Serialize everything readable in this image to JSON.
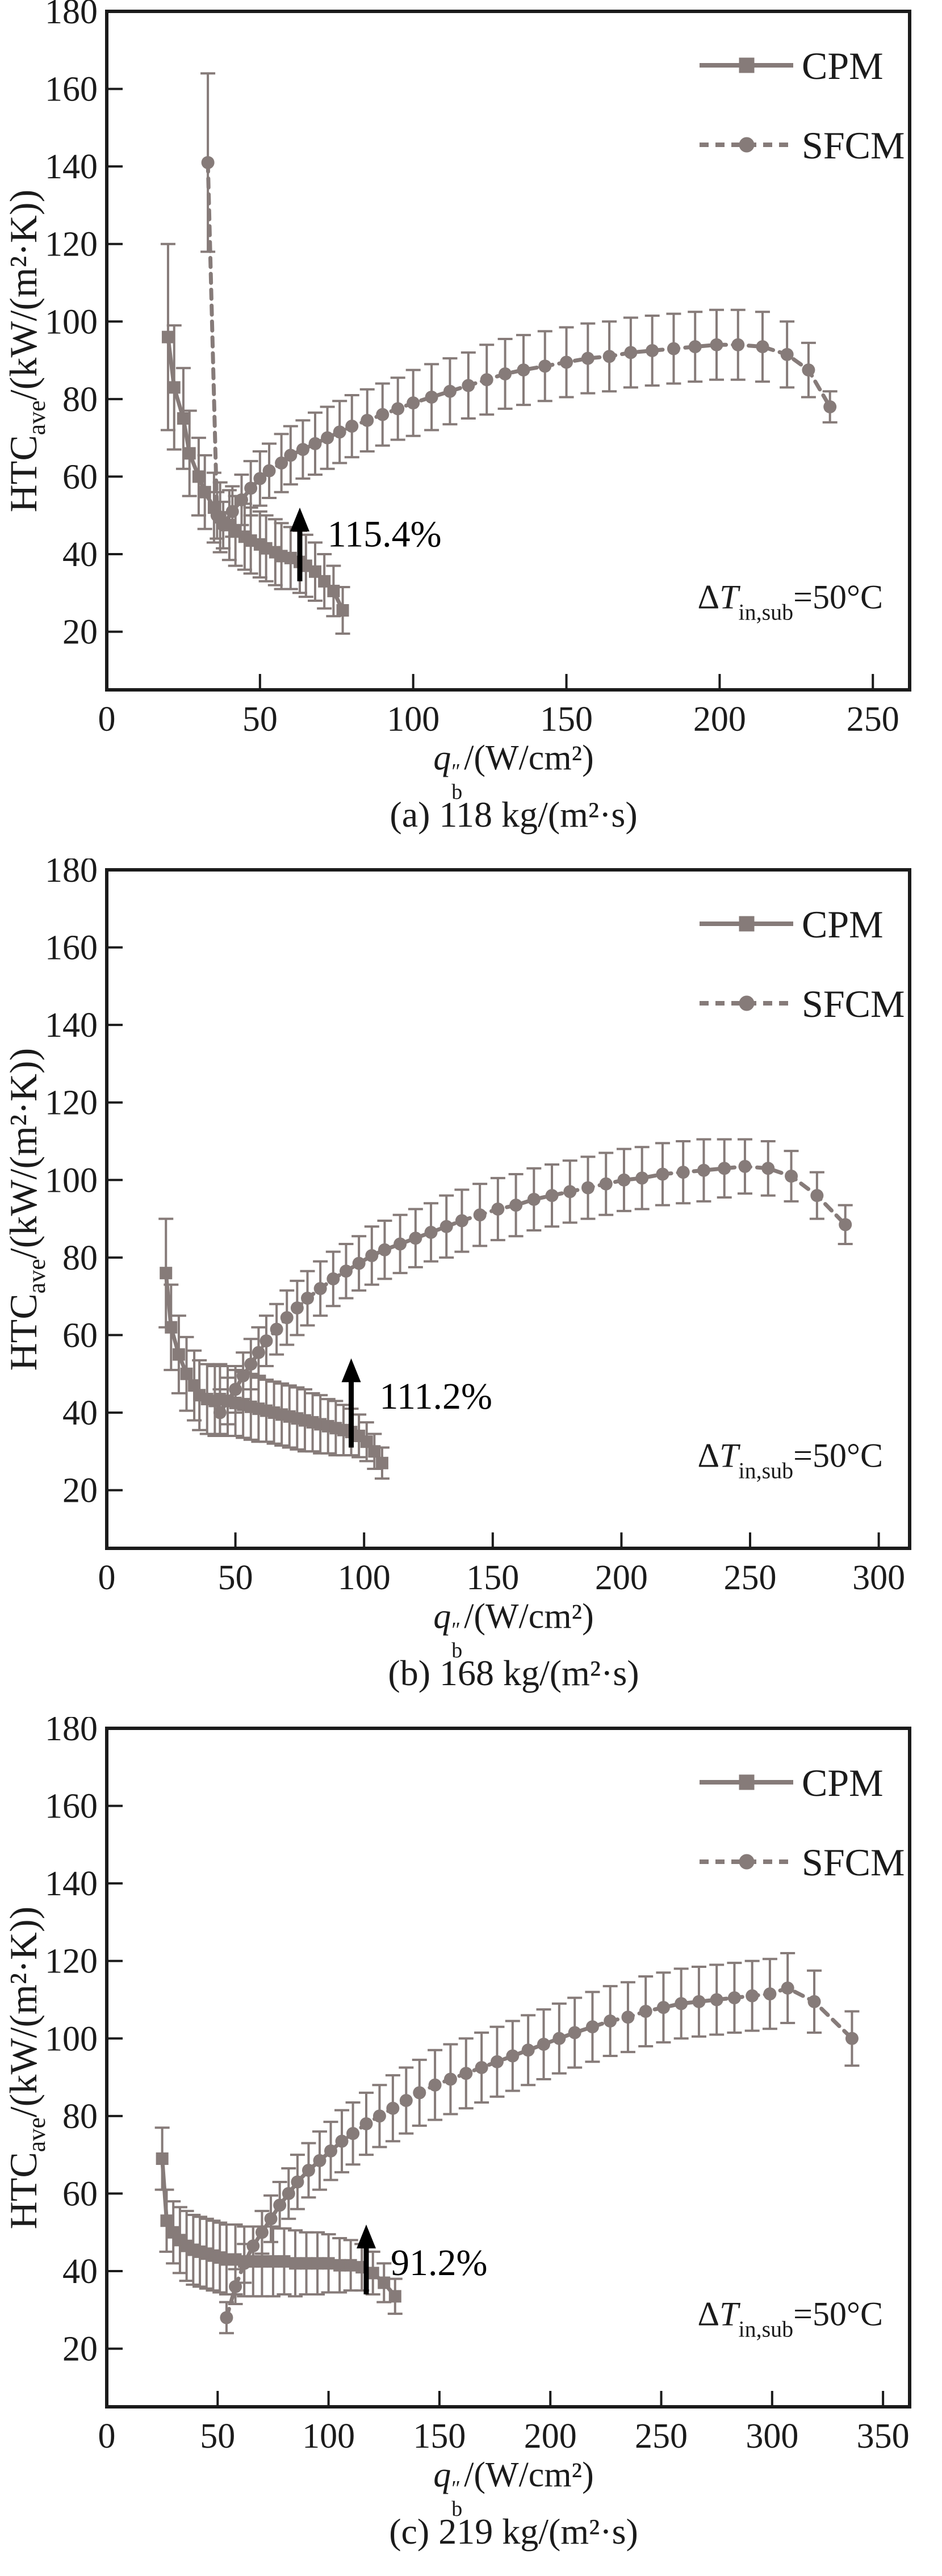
{
  "figure": {
    "series_color": "#867b79",
    "axis_color": "#1b1b1b",
    "annotation_color": "#000000",
    "legend": [
      {
        "label": "CPM",
        "marker": "square"
      },
      {
        "label": "SFCM",
        "marker": "circle"
      }
    ],
    "ylabel": {
      "prefix": "HTC",
      "sub": "ave",
      "rest": "/(kW/(m²·K))"
    },
    "xlabel": {
      "q": "q",
      "sup": "″",
      "sub": "b",
      "rest": "/(W/cm²)"
    },
    "delta_label": {
      "prefix": "Δ",
      "tvar": "T",
      "sub": "in,sub",
      "rest": "=50°C"
    }
  },
  "chart_data": [
    {
      "type": "line",
      "caption": "(a) 118 kg/(m²·s)",
      "xlim": [
        0,
        262
      ],
      "ylim": [
        5,
        180
      ],
      "xticks": [
        0,
        50,
        100,
        150,
        200,
        250
      ],
      "yticks": [
        20,
        40,
        60,
        80,
        100,
        120,
        140,
        160,
        180
      ],
      "grid": false,
      "legend_position": "top-right",
      "annotation": {
        "text": "115.4%",
        "arrow_x": 63,
        "arrow_from": 33,
        "arrow_to": 52,
        "text_x": 72,
        "text_y": 42
      },
      "condition_value": 26,
      "series": [
        {
          "name": "CPM",
          "marker": "square",
          "x": [
            20,
            22,
            25,
            27,
            30,
            32,
            35,
            37,
            40,
            42,
            45,
            47,
            50,
            52,
            55,
            57,
            60,
            63,
            65,
            68,
            71,
            74,
            77
          ],
          "y": [
            96,
            83,
            75,
            66,
            60,
            56,
            52,
            49.5,
            47.5,
            46,
            44.5,
            43.5,
            42.5,
            41.5,
            40.5,
            39.5,
            39,
            38,
            37,
            35.5,
            33,
            30.5,
            25.5
          ],
          "err": [
            24,
            16,
            13,
            11,
            10,
            9.5,
            9,
            9,
            9,
            9,
            8.5,
            8.5,
            8.5,
            8.5,
            8.5,
            8.5,
            8,
            8,
            8,
            7.5,
            7,
            6.5,
            6
          ]
        },
        {
          "name": "SFCM",
          "marker": "circle",
          "x": [
            33,
            36,
            38,
            41,
            44,
            47,
            50,
            53,
            57,
            60,
            64,
            68,
            72,
            76,
            80,
            85,
            90,
            95,
            100,
            106,
            112,
            118,
            124,
            130,
            136,
            143,
            150,
            157,
            164,
            171,
            178,
            185,
            192,
            199,
            206,
            214,
            222,
            229,
            236
          ],
          "y": [
            141,
            50,
            47.5,
            51,
            54,
            57,
            59.5,
            61.5,
            63.5,
            65.5,
            67,
            68.5,
            70,
            71.5,
            73,
            74.5,
            76,
            77.5,
            79,
            80.5,
            82,
            83.5,
            85,
            86.5,
            87.5,
            88.5,
            89.5,
            90.5,
            91,
            92,
            92.5,
            93,
            93.5,
            94,
            94,
            93.5,
            91.5,
            87.5,
            78
          ],
          "err": [
            23,
            6,
            6,
            6.5,
            6.5,
            7,
            7,
            7,
            7.5,
            7.5,
            7.5,
            8,
            8,
            8,
            8,
            8,
            8,
            8,
            8.5,
            8.5,
            8.5,
            8.5,
            9,
            9,
            9,
            9,
            9,
            9,
            9,
            9,
            9,
            9,
            9,
            9,
            9,
            9,
            8.5,
            7,
            4
          ]
        }
      ]
    },
    {
      "type": "line",
      "caption": "(b) 168 kg/(m²·s)",
      "xlim": [
        0,
        312
      ],
      "ylim": [
        5,
        180
      ],
      "xticks": [
        0,
        50,
        100,
        150,
        200,
        250,
        300
      ],
      "yticks": [
        20,
        40,
        60,
        80,
        100,
        120,
        140,
        160,
        180
      ],
      "grid": false,
      "legend_position": "top-right",
      "annotation": {
        "text": "111.2%",
        "arrow_x": 95,
        "arrow_from": 31,
        "arrow_to": 54,
        "text_x": 106,
        "text_y": 41
      },
      "condition_value": 26,
      "series": [
        {
          "name": "CPM",
          "marker": "square",
          "x": [
            23,
            25,
            28,
            31,
            34,
            36,
            39,
            42,
            44,
            47,
            50,
            53,
            56,
            59,
            62,
            65,
            68,
            71,
            74,
            77,
            80,
            83,
            86,
            89,
            92,
            95,
            98,
            101,
            104,
            107
          ],
          "y": [
            76,
            62,
            55,
            50,
            47,
            44.5,
            43.5,
            43,
            43.5,
            43,
            42.5,
            42,
            41.5,
            41,
            40.5,
            40,
            39.5,
            39,
            38.5,
            38,
            37.5,
            37,
            36.5,
            36,
            35.5,
            35,
            34,
            32.5,
            30,
            27
          ],
          "err": [
            14,
            11,
            10,
            9.5,
            9,
            9,
            9,
            9,
            9,
            9,
            8.5,
            8.5,
            8.5,
            8.5,
            8,
            8,
            8,
            8,
            8,
            8,
            7.5,
            7.5,
            7,
            7,
            6.5,
            6,
            5.5,
            5,
            4.5,
            4
          ]
        },
        {
          "name": "SFCM",
          "marker": "circle",
          "x": [
            44,
            47,
            50,
            53,
            56,
            59,
            62,
            66,
            70,
            74,
            78,
            83,
            88,
            93,
            98,
            103,
            108,
            114,
            120,
            126,
            132,
            138,
            145,
            152,
            159,
            166,
            173,
            180,
            187,
            194,
            201,
            208,
            216,
            224,
            232,
            240,
            248,
            257,
            266,
            276,
            287
          ],
          "y": [
            40,
            43,
            46,
            49.5,
            52.5,
            55.5,
            58.5,
            61.5,
            64.5,
            67,
            69.5,
            72,
            74.5,
            76.5,
            78.5,
            80.5,
            82,
            83.5,
            85,
            86.5,
            88,
            89.5,
            91,
            92.5,
            93.5,
            95,
            96,
            97,
            98,
            99,
            100,
            100.5,
            101.5,
            102,
            102.5,
            103,
            103.5,
            103,
            101,
            96,
            88.5
          ],
          "err": [
            6,
            6,
            6,
            6,
            6.5,
            6.5,
            6.5,
            6.5,
            7,
            7,
            7,
            7,
            7,
            7,
            7,
            7.5,
            7.5,
            7.5,
            7.5,
            7.5,
            8,
            8,
            8,
            8,
            8,
            8,
            8,
            8,
            8,
            8,
            8,
            8,
            8,
            8,
            8,
            7.5,
            7,
            7,
            6.5,
            6,
            5
          ]
        }
      ]
    },
    {
      "type": "line",
      "caption": "(c) 219 kg/(m²·s)",
      "xlim": [
        0,
        362
      ],
      "ylim": [
        5,
        180
      ],
      "xticks": [
        0,
        50,
        100,
        150,
        200,
        250,
        300,
        350
      ],
      "yticks": [
        20,
        40,
        60,
        80,
        100,
        120,
        140,
        160,
        180
      ],
      "grid": false,
      "legend_position": "top-right",
      "annotation": {
        "text": "91.2%",
        "arrow_x": 117,
        "arrow_from": 34,
        "arrow_to": 52,
        "text_x": 128,
        "text_y": 39
      },
      "condition_value": 26,
      "series": [
        {
          "name": "CPM",
          "marker": "square",
          "x": [
            25,
            27,
            30,
            33,
            36,
            39,
            42,
            45,
            48,
            51,
            54,
            58,
            62,
            66,
            70,
            75,
            80,
            85,
            90,
            95,
            100,
            105,
            110,
            115,
            120,
            125,
            130
          ],
          "y": [
            69,
            53,
            50,
            48,
            46.5,
            45.5,
            45,
            44.5,
            44,
            43.5,
            43,
            43,
            42.5,
            42.5,
            42.5,
            42.5,
            42.5,
            42,
            42,
            42,
            42,
            41.5,
            41.5,
            41,
            39.5,
            37,
            33.5
          ],
          "err": [
            8,
            8,
            8,
            8.5,
            9,
            9,
            9,
            9,
            9,
            9,
            9,
            9,
            9,
            9,
            9,
            9,
            8.5,
            8.5,
            8,
            8,
            7.5,
            7,
            6.5,
            6,
            5.5,
            5,
            4.5
          ]
        },
        {
          "name": "SFCM",
          "marker": "circle",
          "x": [
            54,
            58,
            62,
            66,
            70,
            74,
            78,
            82,
            86,
            91,
            96,
            101,
            106,
            111,
            117,
            123,
            129,
            135,
            141,
            148,
            155,
            162,
            169,
            176,
            183,
            190,
            197,
            204,
            211,
            219,
            227,
            235,
            243,
            251,
            259,
            267,
            275,
            283,
            291,
            299,
            307,
            319,
            336
          ],
          "y": [
            28,
            36,
            42,
            46.5,
            50,
            53.5,
            57,
            60,
            63,
            66,
            68.5,
            71,
            73.5,
            75.5,
            78,
            80,
            82,
            84,
            86,
            88,
            89.5,
            91,
            92.5,
            94,
            95.5,
            97,
            98.5,
            100,
            101.5,
            103,
            104.5,
            105.5,
            107,
            108,
            109,
            109.5,
            110,
            110.5,
            111,
            111.5,
            113,
            109.5,
            100
          ],
          "err": [
            4,
            4.5,
            5,
            5,
            5.5,
            6,
            6,
            6.5,
            7,
            7,
            7.5,
            7.5,
            8,
            8,
            8,
            8,
            8.5,
            8.5,
            8.5,
            9,
            9,
            9,
            9,
            9,
            9,
            9,
            9,
            9,
            9,
            9,
            9,
            9,
            9,
            9,
            9,
            9,
            9,
            9,
            9,
            9,
            9,
            8,
            7
          ]
        }
      ]
    }
  ]
}
